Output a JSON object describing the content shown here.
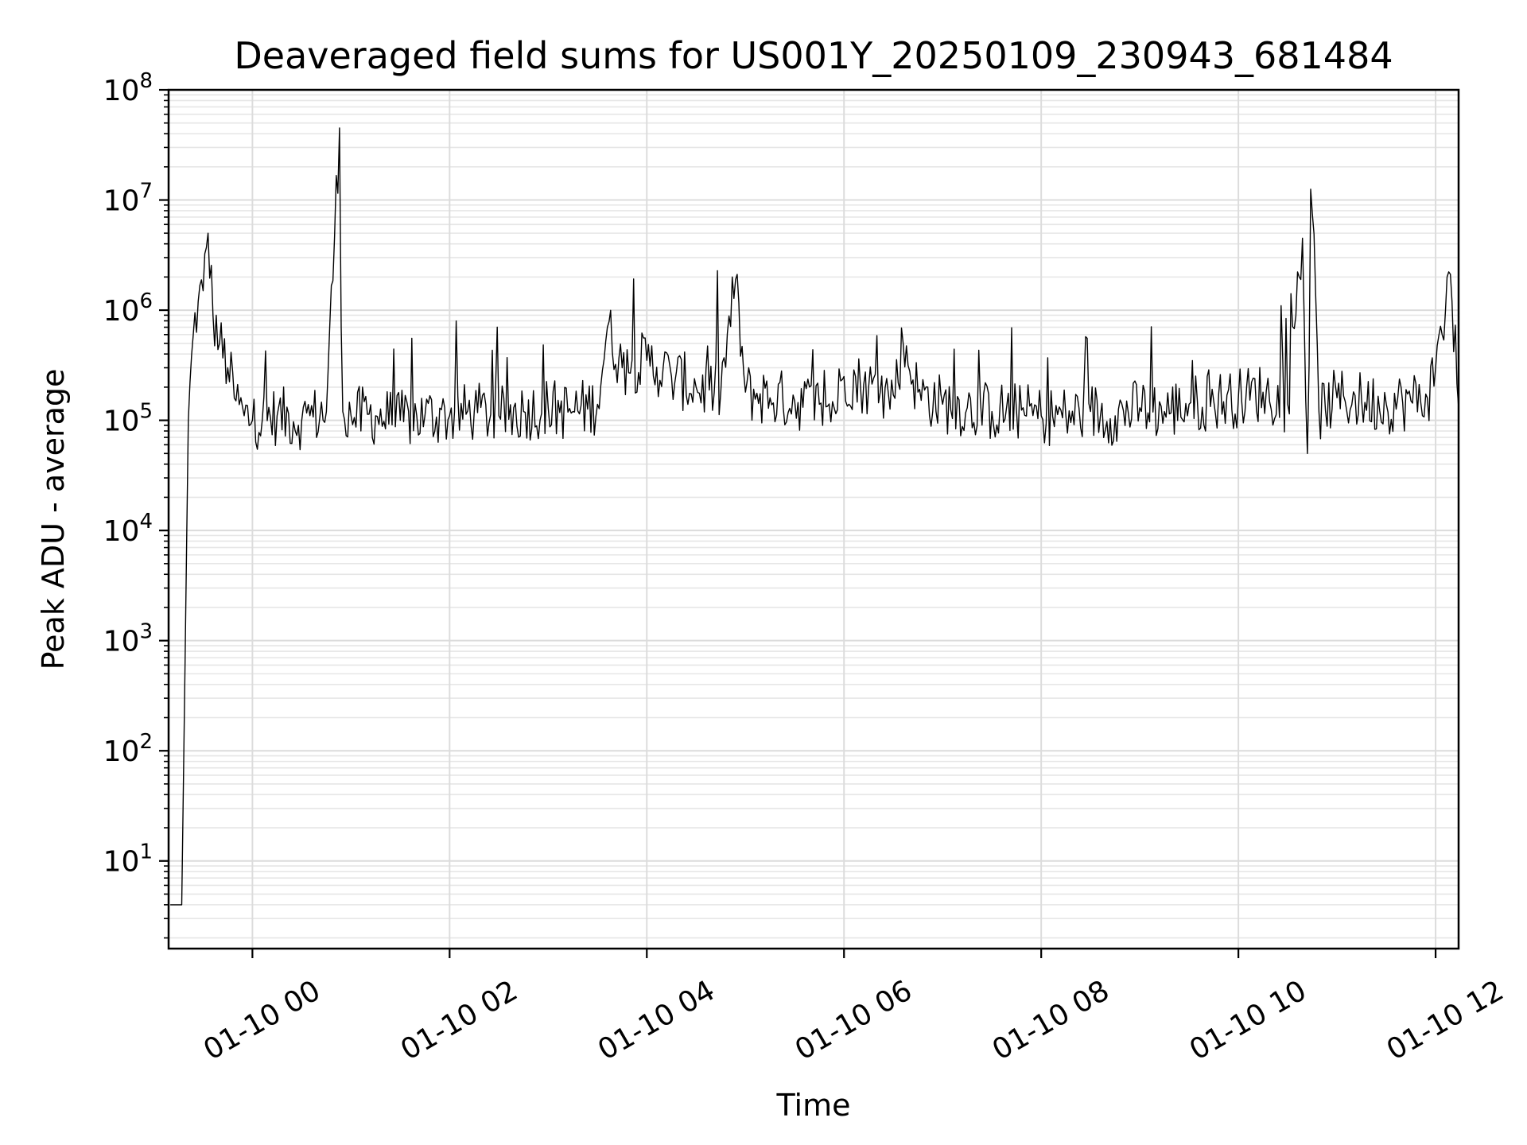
{
  "chart_data": {
    "type": "line",
    "title": "Deaveraged field sums for US001Y_20250109_230943_681484",
    "xlabel": "Time",
    "ylabel": "Peak ADU - average",
    "yscale": "log",
    "ylim": [
      1.6,
      100000000
    ],
    "xlim": [
      "2025-01-09 23:09",
      "2025-01-10 12:14"
    ],
    "grid": true,
    "legend": "none",
    "line_color": "#000000",
    "x_ticks": [
      "01-10 00",
      "01-10 02",
      "01-10 04",
      "01-10 06",
      "01-10 08",
      "01-10 10",
      "01-10 12"
    ],
    "y_tick_exponents": [
      "1",
      "2",
      "3",
      "4",
      "5",
      "6",
      "7",
      "8"
    ],
    "y_tick_base": "10",
    "series": [
      {
        "x": [
          "2025-01-09 23:10",
          "2025-01-09 23:13",
          "2025-01-09 23:16",
          "2025-01-09 23:17",
          "2025-01-09 23:21",
          "2025-01-09 23:24",
          "2025-01-09 23:27",
          "2025-01-09 23:30",
          "2025-01-09 23:33",
          "2025-01-09 23:36",
          "2025-01-09 23:40",
          "2025-01-09 23:45",
          "2025-01-09 23:50",
          "2025-01-09 23:55",
          "2025-01-10 00:00",
          "2025-01-10 00:15",
          "2025-01-10 00:30",
          "2025-01-10 00:45",
          "2025-01-10 00:53",
          "2025-01-10 00:54",
          "2025-01-10 00:55",
          "2025-01-10 01:00",
          "2025-01-10 01:15",
          "2025-01-10 01:30",
          "2025-01-10 01:45",
          "2025-01-10 02:00",
          "2025-01-10 02:15",
          "2025-01-10 02:30",
          "2025-01-10 02:45",
          "2025-01-10 03:00",
          "2025-01-10 03:15",
          "2025-01-10 03:30",
          "2025-01-10 03:36",
          "2025-01-10 03:45",
          "2025-01-10 04:00",
          "2025-01-10 04:15",
          "2025-01-10 04:30",
          "2025-01-10 04:45",
          "2025-01-10 04:54",
          "2025-01-10 05:00",
          "2025-01-10 05:15",
          "2025-01-10 05:30",
          "2025-01-10 05:45",
          "2025-01-10 05:54",
          "2025-01-10 06:00",
          "2025-01-10 06:15",
          "2025-01-10 06:30",
          "2025-01-10 06:36",
          "2025-01-10 06:45",
          "2025-01-10 07:00",
          "2025-01-10 07:15",
          "2025-01-10 07:30",
          "2025-01-10 07:45",
          "2025-01-10 08:00",
          "2025-01-10 08:15",
          "2025-01-10 08:30",
          "2025-01-10 08:45",
          "2025-01-10 09:00",
          "2025-01-10 09:15",
          "2025-01-10 09:30",
          "2025-01-10 09:45",
          "2025-01-10 10:00",
          "2025-01-10 10:15",
          "2025-01-10 10:30",
          "2025-01-10 10:39",
          "2025-01-10 10:42",
          "2025-01-10 10:45",
          "2025-01-10 10:49",
          "2025-01-10 11:00",
          "2025-01-10 11:15",
          "2025-01-10 11:30",
          "2025-01-10 11:45",
          "2025-01-10 11:55",
          "2025-01-10 12:00",
          "2025-01-10 12:04",
          "2025-01-10 12:07",
          "2025-01-10 12:10",
          "2025-01-10 12:14"
        ],
        "y": [
          4,
          4,
          4,
          4,
          100000,
          600000,
          1200000,
          1500000,
          5000000,
          900000,
          500000,
          300000,
          150000,
          110000,
          100000,
          110000,
          100000,
          120000,
          45000000,
          700000,
          120000,
          110000,
          110000,
          100000,
          110000,
          110000,
          120000,
          110000,
          120000,
          130000,
          120000,
          140000,
          700000,
          300000,
          350000,
          250000,
          200000,
          180000,
          1900000,
          180000,
          160000,
          150000,
          140000,
          130000,
          250000,
          200000,
          170000,
          500000,
          180000,
          140000,
          130000,
          120000,
          120000,
          110000,
          110000,
          120000,
          110000,
          130000,
          120000,
          140000,
          150000,
          160000,
          180000,
          140000,
          4500000,
          50000,
          7500000,
          120000,
          160000,
          150000,
          140000,
          150000,
          160000,
          300000,
          600000,
          2000000,
          1200000,
          130000
        ]
      }
    ]
  }
}
